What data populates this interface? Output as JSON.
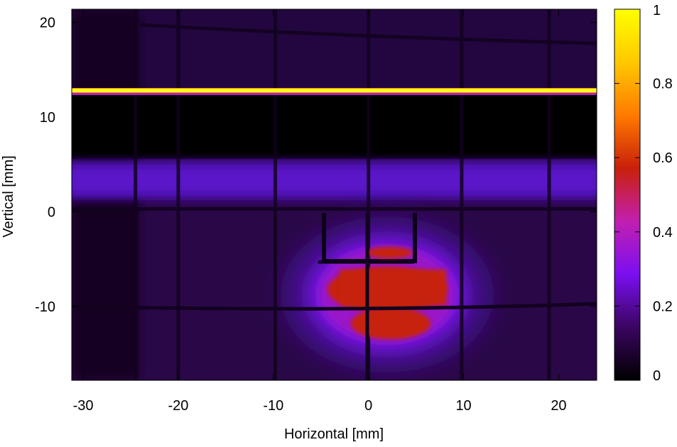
{
  "chart_data": {
    "type": "heatmap",
    "title": "",
    "xlabel": "Horizontal [mm]",
    "ylabel": "Vertical [mm]",
    "xlim": [
      -31.2,
      24.0
    ],
    "ylim": [
      -17.8,
      21.4
    ],
    "x_ticks": [
      -30,
      -20,
      -10,
      0,
      10,
      20
    ],
    "x_tick_labels": [
      "-30",
      "-20",
      "-10",
      "0",
      "10",
      "20"
    ],
    "y_ticks": [
      -10,
      0,
      10,
      20
    ],
    "y_tick_labels": [
      "-10",
      "0",
      "10",
      "20"
    ],
    "colorbar": {
      "range": [
        0,
        1
      ],
      "ticks": [
        0,
        0.2,
        0.4,
        0.6,
        0.8,
        1
      ],
      "tick_labels": [
        "0",
        "0.2",
        "0.4",
        "0.6",
        "0.8",
        "1"
      ],
      "colormap": [
        "#000000",
        "#3a0560",
        "#7a0ff0",
        "#c21fb0",
        "#c8200a",
        "#ff7a00",
        "#ffc800",
        "#ffff00"
      ]
    },
    "background_level": 0.06,
    "features": [
      {
        "name": "bright line",
        "y": 12.8,
        "value": 1.0
      },
      {
        "name": "dark band",
        "y_range": [
          6.0,
          12.0
        ],
        "value": 0.0
      },
      {
        "name": "purple band",
        "y_range": [
          1.5,
          5.5
        ],
        "value": 0.18
      },
      {
        "name": "beam spot",
        "x_center": 2.0,
        "y_center": -8.0,
        "value": 0.5
      }
    ],
    "grid_lines_x": [
      -24.5,
      -20,
      -9.8,
      0,
      9.8,
      19
    ],
    "grid_lines_y": [
      -10.2,
      -5.3,
      0.3
    ]
  }
}
